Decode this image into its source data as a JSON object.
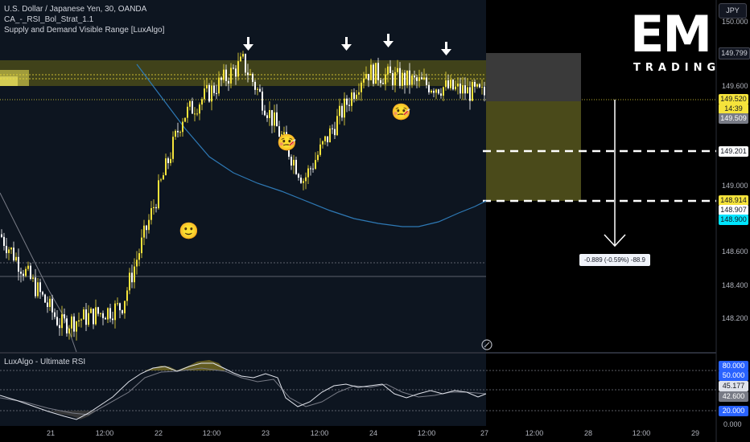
{
  "legend": {
    "symbol_line": "U.S. Dollar / Japanese Yen, 30, OANDA",
    "indicator_1": "CA_-_RSI_Bol_Strat_1.1",
    "indicator_2": "Supply and Demand Visible Range [LuxAlgo]",
    "rsi_title": "LuxAlgo - Ultimate RSI"
  },
  "currency_button": "JPY",
  "logo": {
    "main": "EM",
    "sub": "TRADING"
  },
  "price_axis": {
    "ticks": [
      "150.000",
      "149.600",
      "149.000",
      "148.600",
      "148.400",
      "148.200"
    ],
    "tags": {
      "zone_top": "149.799",
      "last_price": "149.520",
      "countdown": "14:39",
      "bid": "149.509",
      "mid_level": "149.201",
      "level_a": "148.914",
      "level_b": "148.907",
      "level_c": "148.900"
    }
  },
  "rsi_axis": {
    "upper": "80.000",
    "upper_mid": "50.000",
    "value": "45.177",
    "signal": "42.600",
    "lower": "20.000",
    "zero": "0.000"
  },
  "measure_label": "-0.889 (-0.59%) -88.9",
  "time_axis": [
    "21",
    "12:00",
    "22",
    "12:00",
    "23",
    "12:00",
    "24",
    "12:00",
    "27",
    "12:00",
    "28",
    "12:00",
    "29"
  ],
  "emojis": {
    "smile": "🙂",
    "sick": "🤒"
  },
  "colors": {
    "background": "#000000",
    "candle": "#f5e33b",
    "supply_zone": "#4a4a1a",
    "ma_line": "#2e79b5",
    "tag_blue": "#2962ff",
    "tag_yellow": "#f5e33b",
    "tag_cyan": "#00e5ff"
  },
  "chart_data": {
    "type": "candlestick",
    "symbol": "U.S. Dollar / Japanese Yen",
    "interval": "30",
    "source": "OANDA",
    "x": [
      "21",
      "21 12:00",
      "22",
      "22 12:00",
      "23",
      "23 12:00",
      "24",
      "24 12:00",
      "27"
    ],
    "close": [
      148.75,
      148.25,
      148.35,
      149.4,
      149.7,
      149.05,
      149.65,
      149.58,
      149.52
    ],
    "last_price": 149.52,
    "zone": [
      149.6,
      149.799
    ],
    "ylim": [
      148.1,
      150.0
    ]
  }
}
